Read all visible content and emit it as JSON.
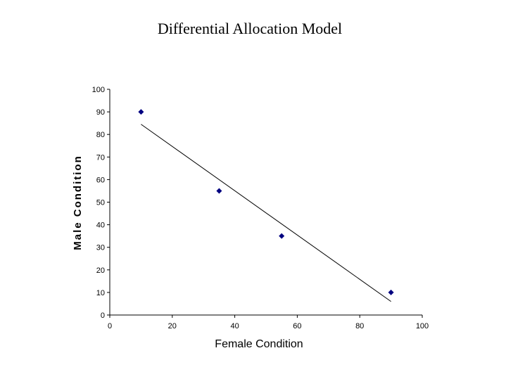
{
  "chart_data": {
    "type": "scatter",
    "title": "Differential Allocation Model",
    "xlabel": "Female Condition",
    "ylabel": "Male Condition",
    "xlim": [
      0,
      100
    ],
    "ylim": [
      0,
      100
    ],
    "x_ticks": [
      0,
      20,
      40,
      60,
      80,
      100
    ],
    "y_ticks": [
      0,
      10,
      20,
      30,
      40,
      50,
      60,
      70,
      80,
      90,
      100
    ],
    "series": [
      {
        "points": [
          {
            "x": 10,
            "y": 90
          },
          {
            "x": 35,
            "y": 55
          },
          {
            "x": 55,
            "y": 35
          },
          {
            "x": 90,
            "y": 10
          }
        ],
        "marker": "diamond",
        "color": "#000080"
      }
    ],
    "trendline": {
      "type": "linear",
      "from": {
        "x": 10,
        "y": 84.5
      },
      "to": {
        "x": 90,
        "y": 6
      }
    },
    "grid": false,
    "legend": "none"
  }
}
